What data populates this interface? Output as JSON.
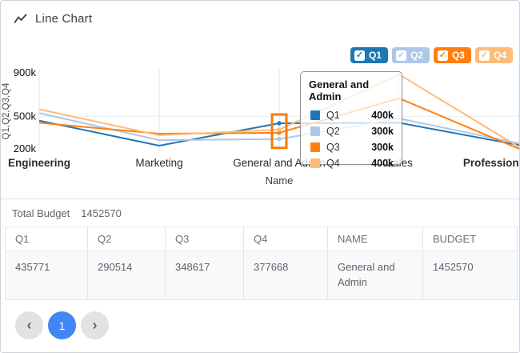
{
  "header": {
    "title": "Line Chart"
  },
  "legend": {
    "items": [
      {
        "label": "Q1",
        "color": "#1f77b4",
        "checked": true
      },
      {
        "label": "Q2",
        "color": "#aec7e8",
        "checked": true
      },
      {
        "label": "Q3",
        "color": "#ff7f0e",
        "checked": true
      },
      {
        "label": "Q4",
        "color": "#ffbb78",
        "checked": true
      }
    ]
  },
  "chart_data": {
    "type": "line",
    "title": "Line Chart",
    "xlabel": "Name",
    "ylabel": "Q1,Q2,Q3,Q4",
    "categories": [
      "Engineering",
      "Marketing",
      "General and Admin",
      "Sales",
      "Professional Services"
    ],
    "y_ticks": [
      {
        "label": "200k",
        "value": 200000
      },
      {
        "label": "500k",
        "value": 500000
      },
      {
        "label": "900k",
        "value": 900000
      }
    ],
    "ylim": [
      200000,
      900000
    ],
    "grid": true,
    "legend_position": "top-right",
    "series": [
      {
        "name": "Q1",
        "color": "#1f77b4",
        "values": [
          460000,
          230000,
          435771,
          440000,
          235000
        ]
      },
      {
        "name": "Q2",
        "color": "#aec7e8",
        "values": [
          530000,
          280000,
          290514,
          480000,
          250000
        ]
      },
      {
        "name": "Q3",
        "color": "#ff7f0e",
        "values": [
          440000,
          340000,
          348617,
          665000,
          200000
        ]
      },
      {
        "name": "Q4",
        "color": "#ffbb78",
        "values": [
          565000,
          325000,
          377668,
          885000,
          215000
        ]
      }
    ],
    "highlighted_category_index": 2,
    "highlight_color": "#f57c00"
  },
  "tooltip": {
    "title": "General and Admin",
    "rows": [
      {
        "label": "Q1",
        "value": "400k",
        "color": "#1f77b4"
      },
      {
        "label": "Q2",
        "value": "300k",
        "color": "#aec7e8"
      },
      {
        "label": "Q3",
        "value": "300k",
        "color": "#ff7f0e"
      },
      {
        "label": "Q4",
        "value": "400k",
        "color": "#ffbb78"
      }
    ]
  },
  "summary": {
    "label": "Total Budget",
    "value": "1452570"
  },
  "table": {
    "columns": [
      "Q1",
      "Q2",
      "Q3",
      "Q4",
      "NAME",
      "BUDGET"
    ],
    "rows": [
      [
        "435771",
        "290514",
        "348617",
        "377668",
        "General and Admin",
        "1452570"
      ]
    ]
  },
  "pagination": {
    "prev_icon": "‹",
    "next_icon": "›",
    "pages": [
      "1"
    ],
    "current_page": "1"
  }
}
